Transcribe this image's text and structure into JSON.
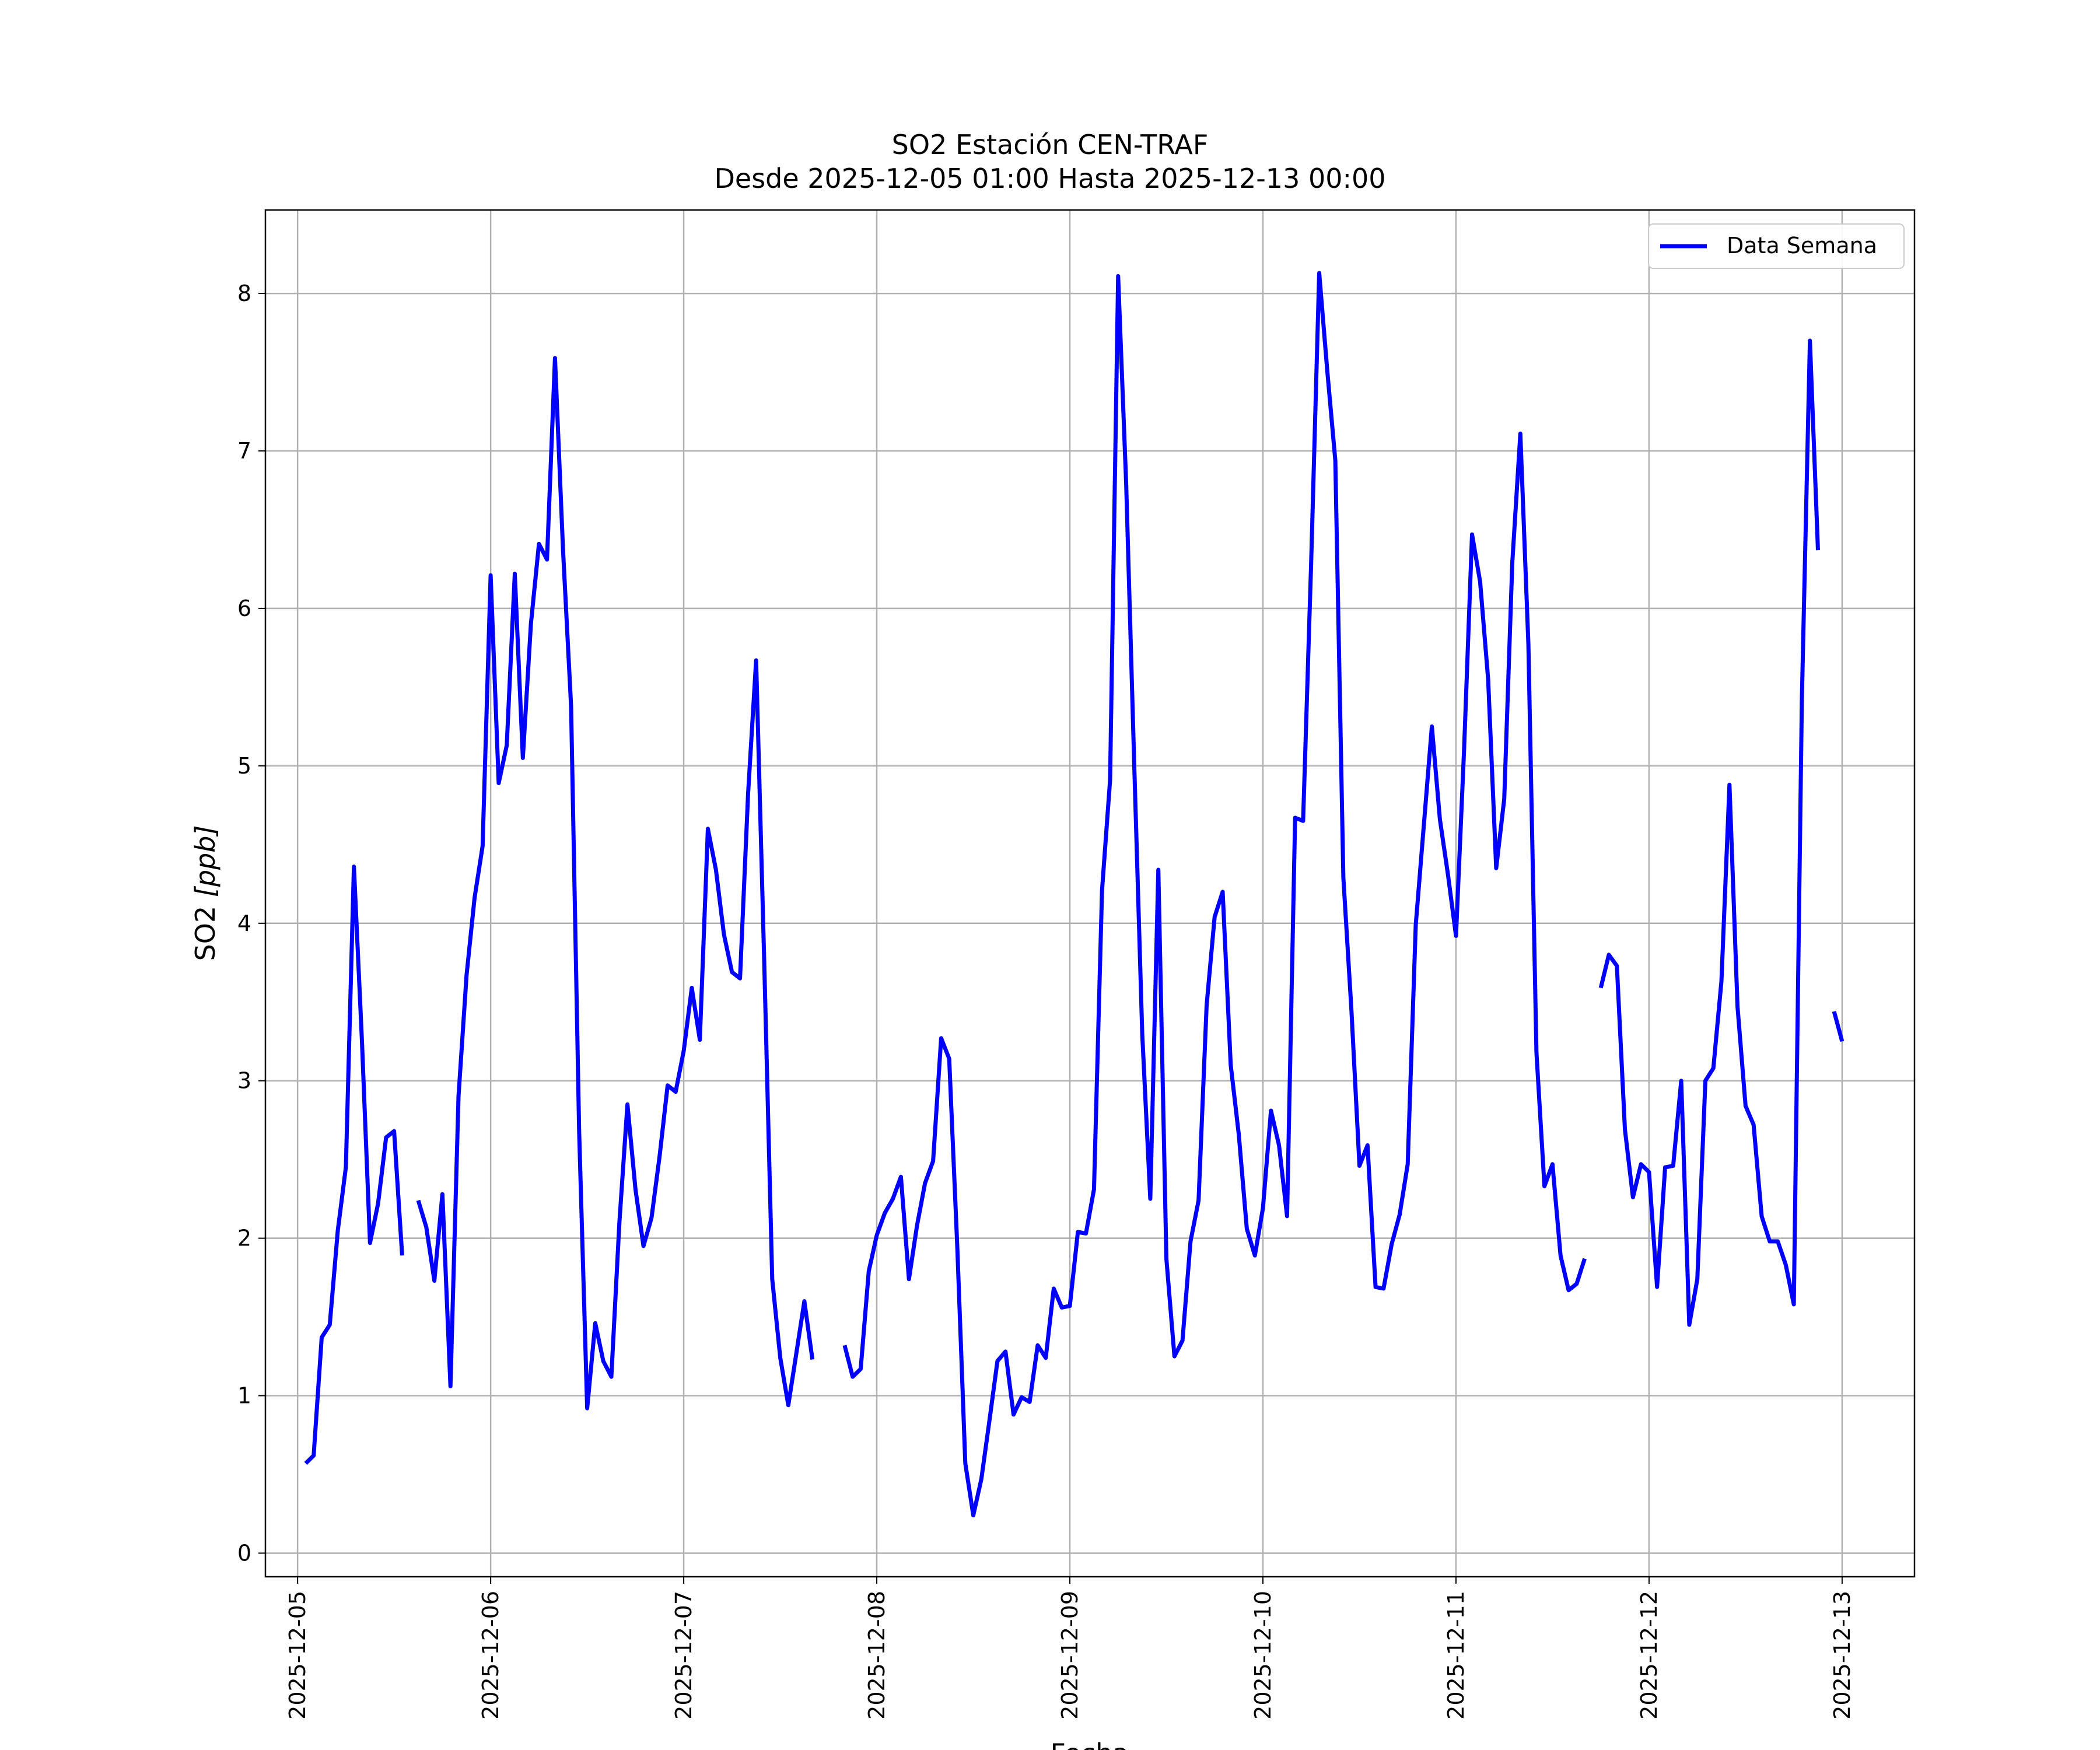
{
  "chart_data": {
    "type": "line",
    "title": "SO2 Estación CEN-TRAF",
    "subtitle": "Desde 2025-12-05 01:00 Hasta 2025-12-13 00:00",
    "xlabel": "Fecha",
    "ylabel": "SO2 [ppb]",
    "ylabel_main": "SO2 ",
    "ylabel_unit": "[ppb]",
    "x_range": [
      "2025-12-04T20:00",
      "2025-12-13T09:00"
    ],
    "ylim": [
      -0.15,
      8.53
    ],
    "x_ticks": [
      "2025-12-05",
      "2025-12-06",
      "2025-12-07",
      "2025-12-08",
      "2025-12-09",
      "2025-12-10",
      "2025-12-11",
      "2025-12-12",
      "2025-12-13"
    ],
    "y_ticks": [
      "0",
      "1",
      "2",
      "3",
      "4",
      "5",
      "6",
      "7",
      "8"
    ],
    "grid": true,
    "legend_position": "top-right",
    "color": "#0000ff",
    "series": [
      {
        "name": "Data Semana",
        "x": [
          "2025-12-05T01:00",
          "2025-12-05T02:00",
          "2025-12-05T03:00",
          "2025-12-05T04:00",
          "2025-12-05T05:00",
          "2025-12-05T06:00",
          "2025-12-05T07:00",
          "2025-12-05T08:00",
          "2025-12-05T09:00",
          "2025-12-05T10:00",
          "2025-12-05T11:00",
          "2025-12-05T12:00",
          "2025-12-05T13:00",
          "2025-12-05T14:00",
          "2025-12-05T15:00",
          "2025-12-05T16:00",
          "2025-12-05T17:00",
          "2025-12-05T18:00",
          "2025-12-05T19:00",
          "2025-12-05T20:00",
          "2025-12-05T21:00",
          "2025-12-05T22:00",
          "2025-12-05T23:00",
          "2025-12-06T00:00",
          "2025-12-06T01:00",
          "2025-12-06T02:00",
          "2025-12-06T03:00",
          "2025-12-06T04:00",
          "2025-12-06T05:00",
          "2025-12-06T06:00",
          "2025-12-06T07:00",
          "2025-12-06T08:00",
          "2025-12-06T09:00",
          "2025-12-06T10:00",
          "2025-12-06T11:00",
          "2025-12-06T12:00",
          "2025-12-06T13:00",
          "2025-12-06T14:00",
          "2025-12-06T15:00",
          "2025-12-06T16:00",
          "2025-12-06T17:00",
          "2025-12-06T18:00",
          "2025-12-06T19:00",
          "2025-12-06T20:00",
          "2025-12-06T21:00",
          "2025-12-06T22:00",
          "2025-12-06T23:00",
          "2025-12-07T00:00",
          "2025-12-07T01:00",
          "2025-12-07T02:00",
          "2025-12-07T03:00",
          "2025-12-07T04:00",
          "2025-12-07T05:00",
          "2025-12-07T06:00",
          "2025-12-07T07:00",
          "2025-12-07T08:00",
          "2025-12-07T09:00",
          "2025-12-07T10:00",
          "2025-12-07T11:00",
          "2025-12-07T12:00",
          "2025-12-07T13:00",
          "2025-12-07T14:00",
          "2025-12-07T15:00",
          "2025-12-07T16:00",
          "2025-12-07T17:00",
          "2025-12-07T18:00",
          "2025-12-07T19:00",
          "2025-12-07T20:00",
          "2025-12-07T21:00",
          "2025-12-07T22:00",
          "2025-12-07T23:00",
          "2025-12-08T00:00",
          "2025-12-08T01:00",
          "2025-12-08T02:00",
          "2025-12-08T03:00",
          "2025-12-08T04:00",
          "2025-12-08T05:00",
          "2025-12-08T06:00",
          "2025-12-08T07:00",
          "2025-12-08T08:00",
          "2025-12-08T09:00",
          "2025-12-08T10:00",
          "2025-12-08T11:00",
          "2025-12-08T12:00",
          "2025-12-08T13:00",
          "2025-12-08T14:00",
          "2025-12-08T15:00",
          "2025-12-08T16:00",
          "2025-12-08T17:00",
          "2025-12-08T18:00",
          "2025-12-08T19:00",
          "2025-12-08T20:00",
          "2025-12-08T21:00",
          "2025-12-08T22:00",
          "2025-12-08T23:00",
          "2025-12-09T00:00",
          "2025-12-09T01:00",
          "2025-12-09T02:00",
          "2025-12-09T03:00",
          "2025-12-09T04:00",
          "2025-12-09T05:00",
          "2025-12-09T06:00",
          "2025-12-09T07:00",
          "2025-12-09T08:00",
          "2025-12-09T09:00",
          "2025-12-09T10:00",
          "2025-12-09T11:00",
          "2025-12-09T12:00",
          "2025-12-09T13:00",
          "2025-12-09T14:00",
          "2025-12-09T15:00",
          "2025-12-09T16:00",
          "2025-12-09T17:00",
          "2025-12-09T18:00",
          "2025-12-09T19:00",
          "2025-12-09T20:00",
          "2025-12-09T21:00",
          "2025-12-09T22:00",
          "2025-12-09T23:00",
          "2025-12-10T00:00",
          "2025-12-10T01:00",
          "2025-12-10T02:00",
          "2025-12-10T03:00",
          "2025-12-10T04:00",
          "2025-12-10T05:00",
          "2025-12-10T06:00",
          "2025-12-10T07:00",
          "2025-12-10T08:00",
          "2025-12-10T09:00",
          "2025-12-10T10:00",
          "2025-12-10T11:00",
          "2025-12-10T12:00",
          "2025-12-10T13:00",
          "2025-12-10T14:00",
          "2025-12-10T15:00",
          "2025-12-10T16:00",
          "2025-12-10T17:00",
          "2025-12-10T18:00",
          "2025-12-10T19:00",
          "2025-12-10T20:00",
          "2025-12-10T21:00",
          "2025-12-10T22:00",
          "2025-12-10T23:00",
          "2025-12-11T00:00",
          "2025-12-11T01:00",
          "2025-12-11T02:00",
          "2025-12-11T03:00",
          "2025-12-11T04:00",
          "2025-12-11T05:00",
          "2025-12-11T06:00",
          "2025-12-11T07:00",
          "2025-12-11T08:00",
          "2025-12-11T09:00",
          "2025-12-11T10:00",
          "2025-12-11T11:00",
          "2025-12-11T12:00",
          "2025-12-11T13:00",
          "2025-12-11T14:00",
          "2025-12-11T15:00",
          "2025-12-11T16:00",
          "2025-12-11T17:00",
          "2025-12-11T18:00",
          "2025-12-11T19:00",
          "2025-12-11T20:00",
          "2025-12-11T21:00",
          "2025-12-11T22:00",
          "2025-12-11T23:00",
          "2025-12-12T00:00",
          "2025-12-12T01:00",
          "2025-12-12T02:00",
          "2025-12-12T03:00",
          "2025-12-12T04:00",
          "2025-12-12T05:00",
          "2025-12-12T06:00",
          "2025-12-12T07:00",
          "2025-12-12T08:00",
          "2025-12-12T09:00",
          "2025-12-12T10:00",
          "2025-12-12T11:00",
          "2025-12-12T12:00",
          "2025-12-12T13:00",
          "2025-12-12T14:00",
          "2025-12-12T15:00",
          "2025-12-12T16:00",
          "2025-12-12T17:00",
          "2025-12-12T18:00",
          "2025-12-12T19:00",
          "2025-12-12T20:00",
          "2025-12-12T21:00",
          "2025-12-12T22:00",
          "2025-12-12T23:00",
          "2025-12-13T00:00"
        ],
        "y": [
          0.57,
          0.62,
          1.37,
          1.45,
          2.05,
          2.45,
          4.36,
          3.25,
          1.97,
          2.22,
          2.64,
          2.68,
          1.89,
          null,
          2.24,
          2.07,
          1.73,
          2.28,
          1.06,
          2.9,
          3.67,
          4.16,
          4.49,
          6.21,
          4.89,
          5.13,
          6.22,
          5.05,
          5.9,
          6.41,
          6.31,
          7.59,
          6.37,
          5.38,
          2.68,
          0.92,
          1.46,
          1.22,
          1.12,
          2.1,
          2.85,
          2.31,
          1.95,
          2.13,
          2.52,
          2.97,
          2.93,
          3.19,
          3.59,
          3.26,
          4.6,
          4.34,
          3.93,
          3.69,
          3.65,
          4.82,
          5.67,
          3.77,
          1.74,
          1.24,
          0.94,
          1.27,
          1.6,
          1.23,
          null,
          null,
          null,
          1.32,
          1.12,
          1.17,
          1.79,
          2.02,
          2.16,
          2.25,
          2.39,
          1.74,
          2.08,
          2.35,
          2.49,
          3.27,
          3.14,
          1.95,
          0.57,
          0.24,
          0.47,
          0.84,
          1.22,
          1.28,
          0.88,
          0.99,
          0.96,
          1.32,
          1.24,
          1.68,
          1.56,
          1.57,
          2.04,
          2.03,
          2.31,
          4.21,
          4.91,
          8.11,
          6.79,
          5.02,
          3.3,
          2.25,
          4.34,
          1.87,
          1.25,
          1.35,
          1.98,
          2.24,
          3.48,
          4.04,
          4.2,
          3.1,
          2.66,
          2.06,
          1.89,
          2.19,
          2.81,
          2.59,
          2.14,
          4.67,
          4.65,
          6.29,
          8.13,
          7.51,
          6.94,
          4.29,
          3.45,
          2.46,
          2.59,
          1.69,
          1.68,
          1.96,
          2.15,
          2.47,
          3.99,
          4.62,
          5.25,
          4.66,
          4.31,
          3.92,
          5.09,
          6.47,
          6.17,
          5.55,
          4.35,
          4.79,
          6.29,
          7.11,
          5.77,
          3.18,
          2.33,
          2.47,
          1.89,
          1.67,
          1.71,
          1.87,
          null,
          3.59,
          3.8,
          3.73,
          2.69,
          2.26,
          2.47,
          2.42,
          1.69,
          2.45,
          2.46,
          3.0,
          1.45,
          1.74,
          3.0,
          3.08,
          3.63,
          4.88,
          3.47,
          2.84,
          2.72,
          2.14,
          1.98,
          1.98,
          1.83,
          1.58,
          5.42,
          7.7,
          6.37,
          null,
          3.44,
          3.25
        ]
      }
    ]
  }
}
